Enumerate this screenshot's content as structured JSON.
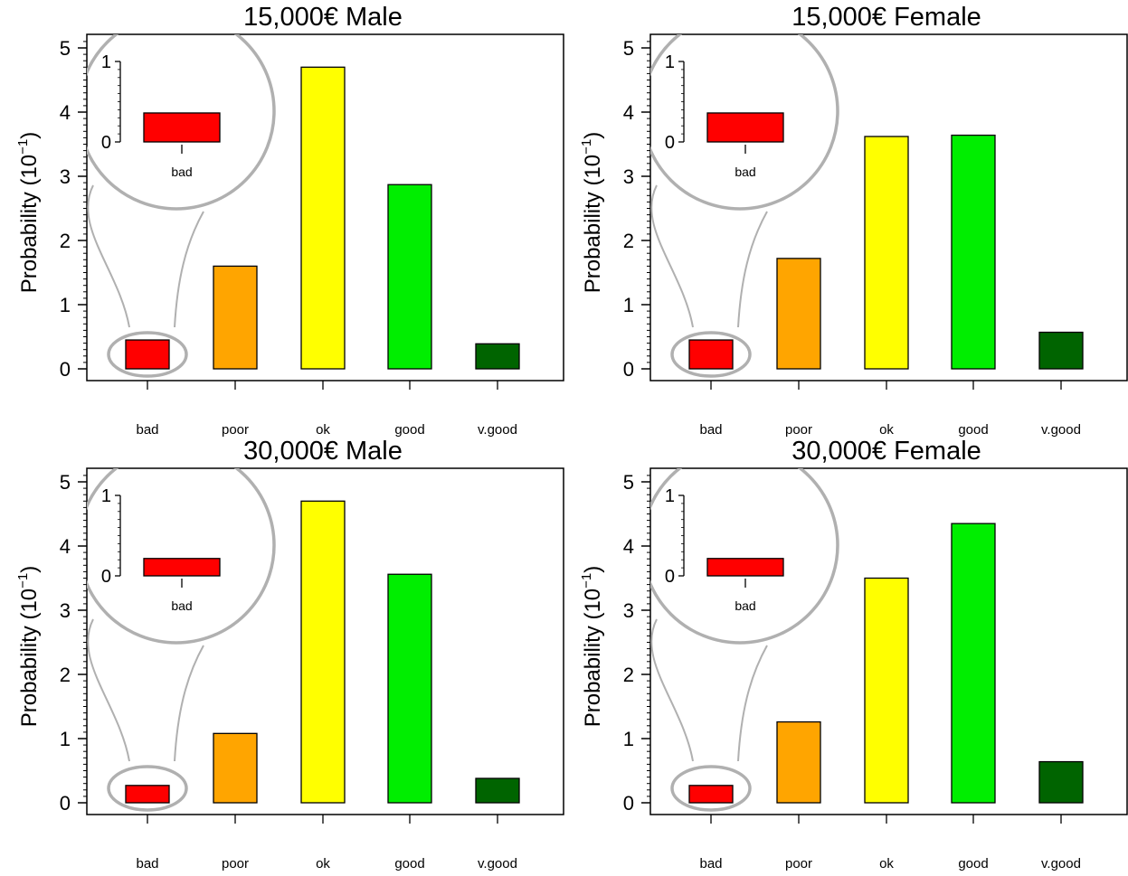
{
  "chart_data": [
    {
      "type": "bar",
      "title": "15,000€ Male",
      "ylabel": "Probability (10",
      "ylabel_exp": "−1",
      "ylabel_close": ")",
      "categories": [
        "bad",
        "poor",
        "ok",
        "good",
        "v.good"
      ],
      "values": [
        0.45,
        1.6,
        4.7,
        2.87,
        0.39
      ],
      "ylim": [
        0,
        5
      ],
      "yticks": [
        "0",
        "1",
        "2",
        "3",
        "4",
        "5"
      ],
      "inset": {
        "category": "bad",
        "yticks": [
          "0",
          "1"
        ]
      }
    },
    {
      "type": "bar",
      "title": "15,000€ Female",
      "ylabel": "Probability (10",
      "ylabel_exp": "−1",
      "ylabel_close": ")",
      "categories": [
        "bad",
        "poor",
        "ok",
        "good",
        "v.good"
      ],
      "values": [
        0.45,
        1.72,
        3.62,
        3.64,
        0.57
      ],
      "ylim": [
        0,
        5
      ],
      "yticks": [
        "0",
        "1",
        "2",
        "3",
        "4",
        "5"
      ],
      "inset": {
        "category": "bad",
        "yticks": [
          "0",
          "1"
        ]
      }
    },
    {
      "type": "bar",
      "title": "30,000€ Male",
      "ylabel": "Probability (10",
      "ylabel_exp": "−1",
      "ylabel_close": ")",
      "categories": [
        "bad",
        "poor",
        "ok",
        "good",
        "v.good"
      ],
      "values": [
        0.27,
        1.08,
        4.7,
        3.56,
        0.38
      ],
      "ylim": [
        0,
        5
      ],
      "yticks": [
        "0",
        "1",
        "2",
        "3",
        "4",
        "5"
      ],
      "inset": {
        "category": "bad",
        "yticks": [
          "0",
          "1"
        ]
      }
    },
    {
      "type": "bar",
      "title": "30,000€ Female",
      "ylabel": "Probability (10",
      "ylabel_exp": "−1",
      "ylabel_close": ")",
      "categories": [
        "bad",
        "poor",
        "ok",
        "good",
        "v.good"
      ],
      "values": [
        0.27,
        1.26,
        3.5,
        4.35,
        0.64
      ],
      "ylim": [
        0,
        5
      ],
      "yticks": [
        "0",
        "1",
        "2",
        "3",
        "4",
        "5"
      ],
      "inset": {
        "category": "bad",
        "yticks": [
          "0",
          "1"
        ]
      }
    }
  ],
  "colors": {
    "bad": "#ff0000",
    "poor": "#ffa500",
    "ok": "#ffff00",
    "good": "#00ee00",
    "v.good": "#006400",
    "magnifier": "#b0b0b0"
  }
}
